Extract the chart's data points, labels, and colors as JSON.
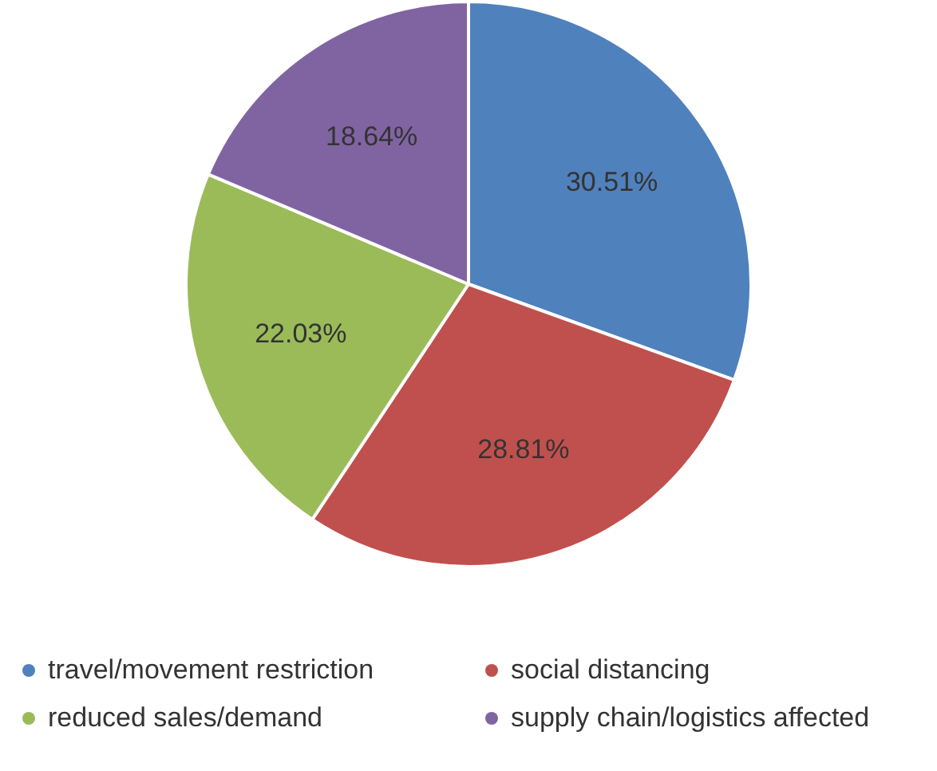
{
  "chart_data": {
    "type": "pie",
    "categories": [
      "travel/movement restriction",
      "social distancing",
      "reduced sales/demand",
      "supply chain/logistics affected"
    ],
    "values": [
      30.51,
      28.81,
      22.03,
      18.64
    ],
    "colors": [
      "#4f81bd",
      "#c0504d",
      "#9bbb59",
      "#8064a2"
    ],
    "value_labels": [
      "30.51%",
      "28.81%",
      "22.03%",
      "18.64%"
    ],
    "legend": "bottom"
  }
}
